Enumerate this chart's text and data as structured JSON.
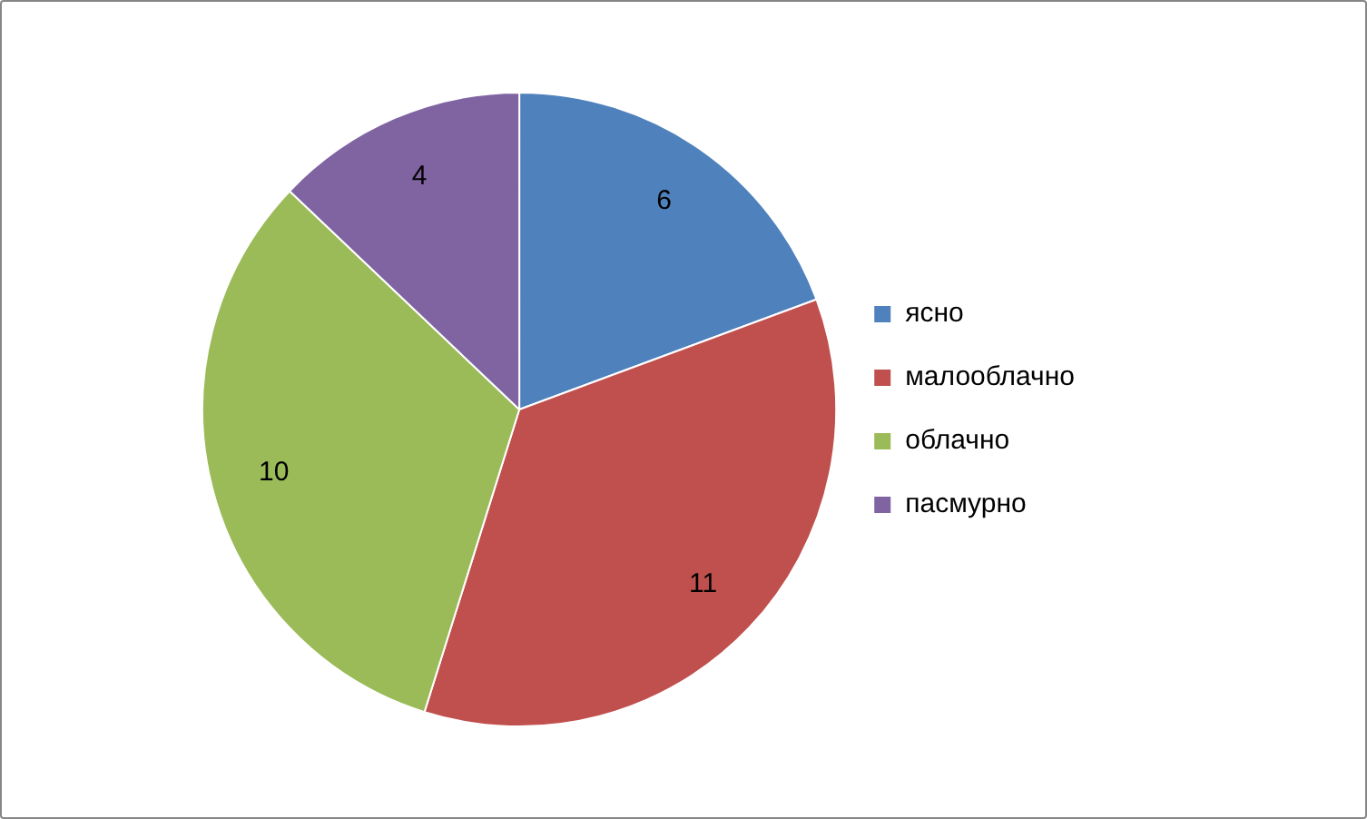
{
  "chart_data": {
    "type": "pie",
    "categories": [
      "ясно",
      "малооблачно",
      "облачно",
      "пасмурно"
    ],
    "values": [
      6,
      11,
      10,
      4
    ],
    "colors": [
      "#4f81bd",
      "#c0504d",
      "#9bbb59",
      "#8064a2"
    ],
    "data_labels": true,
    "legend": "right"
  }
}
